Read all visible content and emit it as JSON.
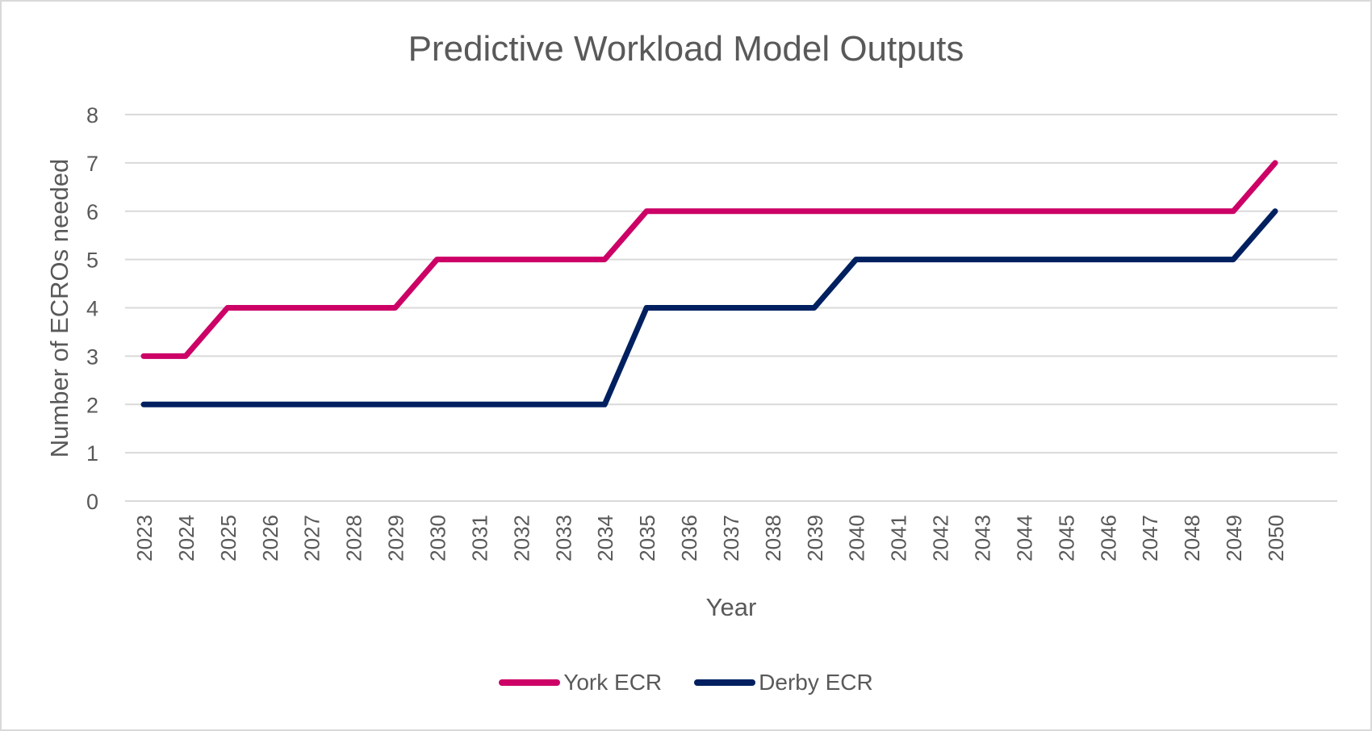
{
  "chart_data": {
    "type": "line",
    "title": "Predictive Workload Model Outputs",
    "xlabel": "Year",
    "ylabel": "Number of ECROs needed",
    "ylim": [
      0,
      8
    ],
    "yticks": [
      0,
      1,
      2,
      3,
      4,
      5,
      6,
      7,
      8
    ],
    "grid": true,
    "legend_position": "bottom",
    "categories": [
      "2023",
      "2024",
      "2025",
      "2026",
      "2027",
      "2028",
      "2029",
      "2030",
      "2031",
      "2032",
      "2033",
      "2034",
      "2035",
      "2036",
      "2037",
      "2038",
      "2039",
      "2040",
      "2041",
      "2042",
      "2043",
      "2044",
      "2045",
      "2046",
      "2047",
      "2048",
      "2049",
      "2050"
    ],
    "series": [
      {
        "name": "York ECR",
        "color": "#CC0066",
        "values": [
          3,
          3,
          4,
          4,
          4,
          4,
          4,
          5,
          5,
          5,
          5,
          5,
          6,
          6,
          6,
          6,
          6,
          6,
          6,
          6,
          6,
          6,
          6,
          6,
          6,
          6,
          6,
          7
        ]
      },
      {
        "name": "Derby ECR",
        "color": "#002060",
        "values": [
          2,
          2,
          2,
          2,
          2,
          2,
          2,
          2,
          2,
          2,
          2,
          2,
          4,
          4,
          4,
          4,
          4,
          5,
          5,
          5,
          5,
          5,
          5,
          5,
          5,
          5,
          5,
          6
        ]
      }
    ]
  }
}
